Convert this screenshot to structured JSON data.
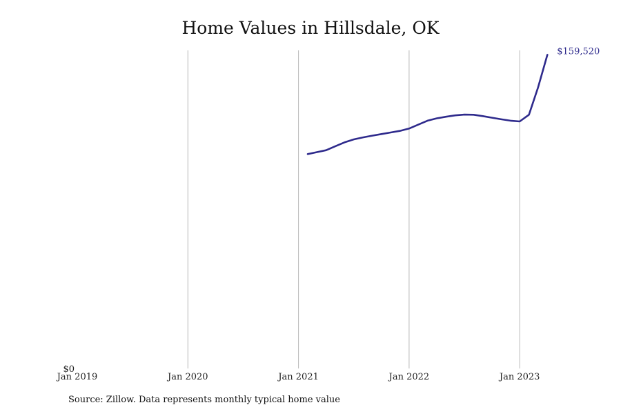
{
  "chart_data": {
    "type": "line",
    "title": "Home Values in Hillsdale, OK",
    "xlabel": "",
    "ylabel": "",
    "x_ticks": [
      "Jan 2019",
      "Jan 2020",
      "Jan 2021",
      "Jan 2022",
      "Jan 2023"
    ],
    "y_ticks": [
      "$0"
    ],
    "ylim": [
      0,
      160000
    ],
    "grid": "vertical",
    "legend": "none",
    "line_color": "#2e2a8c",
    "series": [
      {
        "x": [
          "2021-02",
          "2021-03",
          "2021-04",
          "2021-05",
          "2021-06",
          "2021-07",
          "2021-08",
          "2021-09",
          "2021-10",
          "2021-11",
          "2021-12",
          "2022-01",
          "2022-02",
          "2022-03",
          "2022-04",
          "2022-05",
          "2022-06",
          "2022-07",
          "2022-08",
          "2022-09",
          "2022-10",
          "2022-11",
          "2022-12",
          "2023-01",
          "2023-02",
          "2023-03",
          "2023-04"
        ],
        "values": [
          109000,
          110000,
          111000,
          113000,
          115000,
          116500,
          117500,
          118400,
          119200,
          120000,
          120800,
          122000,
          124000,
          126000,
          127200,
          128000,
          128700,
          129100,
          129000,
          128300,
          127500,
          126700,
          126000,
          125600,
          129000,
          143000,
          159520
        ]
      }
    ],
    "end_label": "$159,520"
  },
  "source": "Source: Zillow. Data represents monthly typical home value"
}
